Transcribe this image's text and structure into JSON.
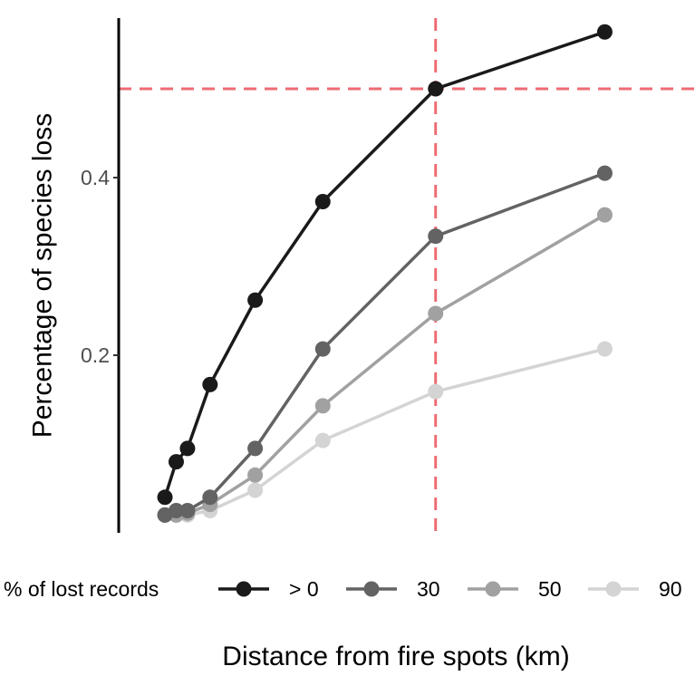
{
  "chart_data": {
    "type": "line",
    "title": "",
    "xlabel": "Distance from fire spots (km)",
    "ylabel": "Percentage of species loss",
    "x": [
      10,
      20,
      30,
      50,
      90,
      150,
      250,
      400
    ],
    "xlim": [
      -31,
      480
    ],
    "ylim": [
      0.0,
      0.6
    ],
    "yticks": [
      0.2,
      0.4
    ],
    "ytick_labels": [
      "0.2",
      "0.4"
    ],
    "show_x_ticks": false,
    "grid": false,
    "reference_lines": {
      "horizontal_y": 0.5,
      "vertical_x": 250,
      "color": "#ee6b73",
      "style": "dashed"
    },
    "legend": {
      "title": "% of lost records",
      "position": "bottom"
    },
    "series": [
      {
        "name": "> 0",
        "color": "#1a1a1a",
        "values": [
          0.04,
          0.08,
          0.095,
          0.167,
          0.262,
          0.373,
          0.5,
          0.564
        ]
      },
      {
        "name": "30",
        "color": "#636363",
        "values": [
          0.02,
          0.025,
          0.025,
          0.04,
          0.095,
          0.207,
          0.334,
          0.405
        ]
      },
      {
        "name": "50",
        "color": "#a1a1a1",
        "values": [
          0.02,
          0.02,
          0.022,
          0.032,
          0.065,
          0.143,
          0.247,
          0.358
        ]
      },
      {
        "name": "90",
        "color": "#d4d4d4",
        "values": [
          0.02,
          0.02,
          0.02,
          0.025,
          0.048,
          0.104,
          0.159,
          0.207
        ]
      }
    ]
  }
}
